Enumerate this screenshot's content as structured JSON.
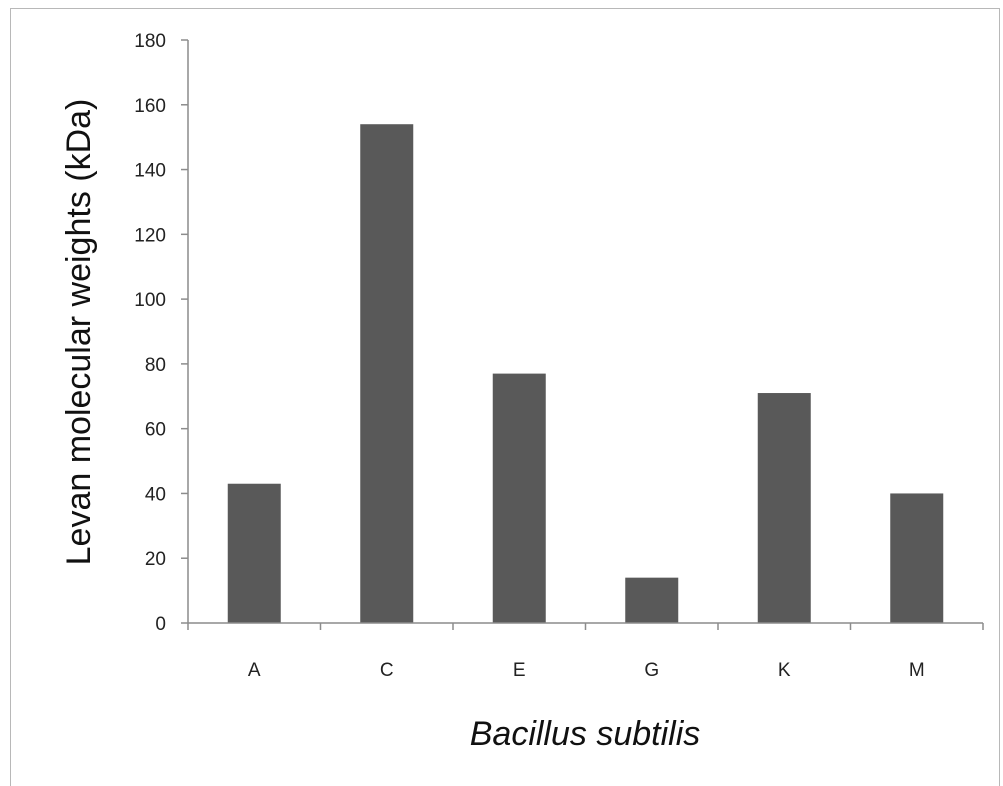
{
  "chart_data": {
    "type": "bar",
    "categories": [
      "A",
      "C",
      "E",
      "G",
      "K",
      "M"
    ],
    "values": [
      43,
      154,
      77,
      14,
      71,
      40
    ],
    "title": "",
    "xlabel": "Bacillus subtilis",
    "ylabel": "Levan molecular weights (kDa)",
    "ylim": [
      0,
      180
    ],
    "yticks": [
      0,
      20,
      40,
      60,
      80,
      100,
      120,
      140,
      160,
      180
    ],
    "grid": false,
    "legend": "none",
    "bar_color": "#595959",
    "axis_color": "#8c8c8c"
  }
}
